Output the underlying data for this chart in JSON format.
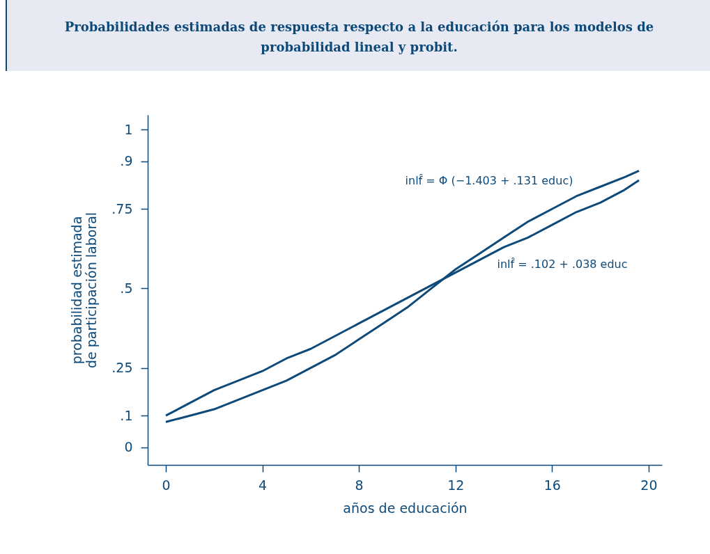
{
  "chart_data": {
    "type": "line",
    "title": "Probabilidades estimadas de respuesta respecto a la educación para los modelos de probabilidad lineal y probit.",
    "xlabel": "años de educación",
    "ylabel": "probabilidad estimada de participación laboral",
    "x": [
      0,
      1,
      2,
      3,
      4,
      5,
      6,
      7,
      8,
      9,
      10,
      11,
      12,
      13,
      14,
      15,
      16,
      17,
      18,
      19,
      19.6
    ],
    "series": [
      {
        "color": "#0d4a7a",
        "values": [
          0.08,
          0.1,
          0.12,
          0.15,
          0.18,
          0.21,
          0.25,
          0.29,
          0.34,
          0.39,
          0.44,
          0.5,
          0.56,
          0.61,
          0.66,
          0.71,
          0.75,
          0.79,
          0.82,
          0.85,
          0.87
        ]
      },
      {
        "color": "#0d4a7a",
        "values": [
          0.1,
          0.14,
          0.18,
          0.21,
          0.24,
          0.28,
          0.31,
          0.35,
          0.39,
          0.43,
          0.47,
          0.51,
          0.55,
          0.59,
          0.63,
          0.66,
          0.7,
          0.74,
          0.77,
          0.81,
          0.84
        ]
      }
    ],
    "annotations": [
      "inlf̂ = Φ (−1.403 + .131 educ)",
      "inlf̂ = .102 + .038 educ"
    ],
    "xlim": [
      -0.75,
      20.55
    ],
    "xticks": [
      0,
      4,
      8,
      12,
      16,
      20
    ],
    "ylim": [
      -0.055,
      1.046
    ],
    "yticks": [
      {
        "value": 0,
        "label": "0"
      },
      {
        "value": 0.1,
        "label": ".1"
      },
      {
        "value": 0.25,
        "label": ".25"
      },
      {
        "value": 0.5,
        "label": ".5"
      },
      {
        "value": 0.75,
        "label": ".75"
      },
      {
        "value": 0.9,
        "label": ".9"
      },
      {
        "value": 1,
        "label": "1"
      }
    ],
    "grid": false,
    "legend": false,
    "line_style": "solid",
    "marker": "none"
  }
}
